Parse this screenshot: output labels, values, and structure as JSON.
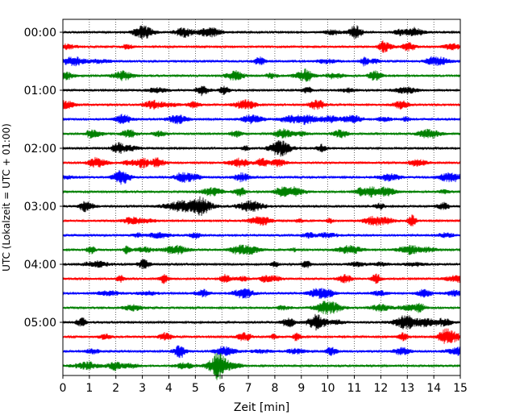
{
  "chart_data": {
    "type": "line",
    "title": "",
    "xlabel": "Zeit  [min]",
    "ylabel": "UTC (Lokalzeit = UTC + 01:00)",
    "xlim": [
      0,
      15
    ],
    "x_ticks": [
      0,
      1,
      2,
      3,
      4,
      5,
      6,
      7,
      8,
      9,
      10,
      11,
      12,
      13,
      14,
      15
    ],
    "y_tick_labels": [
      "00:00",
      "01:00",
      "02:00",
      "03:00",
      "04:00",
      "05:00"
    ],
    "grid": "vertical dotted",
    "trace_interval_min": 15,
    "trace_colors": [
      "#000000",
      "#ff0000",
      "#0000ff",
      "#008000"
    ],
    "traces": [
      {
        "start": "00:00",
        "color": "#000000"
      },
      {
        "start": "00:15",
        "color": "#ff0000"
      },
      {
        "start": "00:30",
        "color": "#0000ff"
      },
      {
        "start": "00:45",
        "color": "#008000"
      },
      {
        "start": "01:00",
        "color": "#000000"
      },
      {
        "start": "01:15",
        "color": "#ff0000"
      },
      {
        "start": "01:30",
        "color": "#0000ff"
      },
      {
        "start": "01:45",
        "color": "#008000"
      },
      {
        "start": "02:00",
        "color": "#000000"
      },
      {
        "start": "02:15",
        "color": "#ff0000"
      },
      {
        "start": "02:30",
        "color": "#0000ff"
      },
      {
        "start": "02:45",
        "color": "#008000"
      },
      {
        "start": "03:00",
        "color": "#000000"
      },
      {
        "start": "03:15",
        "color": "#ff0000"
      },
      {
        "start": "03:30",
        "color": "#0000ff"
      },
      {
        "start": "03:45",
        "color": "#008000"
      },
      {
        "start": "04:00",
        "color": "#000000"
      },
      {
        "start": "04:15",
        "color": "#ff0000"
      },
      {
        "start": "04:30",
        "color": "#0000ff"
      },
      {
        "start": "04:45",
        "color": "#008000"
      },
      {
        "start": "05:00",
        "color": "#000000"
      },
      {
        "start": "05:15",
        "color": "#ff0000"
      },
      {
        "start": "05:30",
        "color": "#0000ff"
      },
      {
        "start": "05:45",
        "color": "#008000"
      }
    ]
  }
}
